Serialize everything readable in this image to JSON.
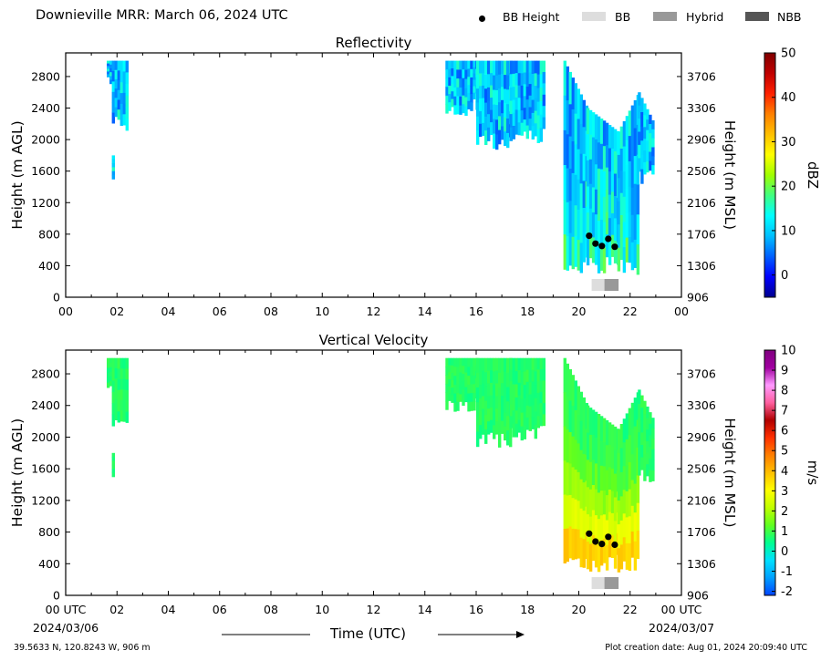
{
  "header": {
    "title": "Downieville MRR:  March 06, 2024 UTC",
    "legend": [
      {
        "label": "BB Height",
        "kind": "dot",
        "color": "#000000"
      },
      {
        "label": "BB",
        "kind": "box",
        "color": "#dddddd"
      },
      {
        "label": "Hybrid",
        "kind": "box",
        "color": "#999999"
      },
      {
        "label": "NBB",
        "kind": "box",
        "color": "#555555"
      }
    ]
  },
  "footer": {
    "location": "39.5633 N, 120.8243 W, 906 m",
    "created": "Plot creation date: Aug 01, 2024 20:09:40 UTC",
    "time_label": "Time (UTC)",
    "start_date": "2024/03/06",
    "end_date": "2024/03/07"
  },
  "chart_data": [
    {
      "type": "heatmap",
      "title": "Reflectivity",
      "ylabel": "Height (m AGL)",
      "y2label": "Height (m MSL)",
      "colorbar_label": "dBZ",
      "xlim": [
        0,
        24
      ],
      "ylim": [
        0,
        3100
      ],
      "xticks": [
        "00",
        "02",
        "04",
        "06",
        "08",
        "10",
        "12",
        "14",
        "16",
        "18",
        "20",
        "22",
        "00"
      ],
      "yticks": [
        0,
        400,
        800,
        1200,
        1600,
        2000,
        2400,
        2800
      ],
      "y2ticks": [
        906,
        1306,
        1706,
        2106,
        2506,
        2906,
        3306,
        3706
      ],
      "colorbar_ticks": [
        0,
        10,
        20,
        30,
        40,
        50
      ],
      "colorbar_range": [
        -5,
        50
      ],
      "bb_height_points": [
        {
          "time_utc": 20.4,
          "height_m_agl": 780
        },
        {
          "time_utc": 20.65,
          "height_m_agl": 680
        },
        {
          "time_utc": 20.9,
          "height_m_agl": 650
        },
        {
          "time_utc": 21.15,
          "height_m_agl": 740
        },
        {
          "time_utc": 21.4,
          "height_m_agl": 640
        }
      ],
      "bb_type_blocks": [
        {
          "start_utc": 20.5,
          "end_utc": 21.0,
          "type": "BB"
        },
        {
          "start_utc": 21.0,
          "end_utc": 21.55,
          "type": "Hybrid"
        }
      ]
    },
    {
      "type": "heatmap",
      "title": "Vertical Velocity",
      "ylabel": "Height (m AGL)",
      "y2label": "Height (m MSL)",
      "colorbar_label": "m/s",
      "xlim": [
        0,
        24
      ],
      "ylim": [
        0,
        3100
      ],
      "xticks": [
        "00 UTC",
        "02",
        "04",
        "06",
        "08",
        "10",
        "12",
        "14",
        "16",
        "18",
        "20",
        "22",
        "00 UTC"
      ],
      "yticks": [
        0,
        400,
        800,
        1200,
        1600,
        2000,
        2400,
        2800
      ],
      "y2ticks": [
        906,
        1306,
        1706,
        2106,
        2506,
        2906,
        3306,
        3706
      ],
      "colorbar_ticks": [
        -2,
        -1,
        0,
        1,
        2,
        3,
        4,
        5,
        6,
        7,
        8,
        9,
        10
      ],
      "colorbar_range": [
        -2.2,
        10
      ],
      "bb_height_points": [
        {
          "time_utc": 20.4,
          "height_m_agl": 780
        },
        {
          "time_utc": 20.65,
          "height_m_agl": 680
        },
        {
          "time_utc": 20.9,
          "height_m_agl": 650
        },
        {
          "time_utc": 21.15,
          "height_m_agl": 740
        },
        {
          "time_utc": 21.4,
          "height_m_agl": 640
        }
      ],
      "bb_type_blocks": [
        {
          "start_utc": 20.5,
          "end_utc": 21.0,
          "type": "BB"
        },
        {
          "start_utc": 21.0,
          "end_utc": 21.55,
          "type": "Hybrid"
        }
      ]
    }
  ]
}
